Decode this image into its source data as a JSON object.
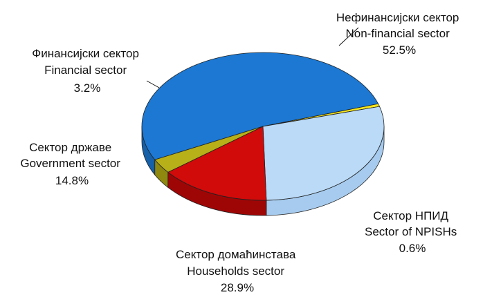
{
  "chart_data": {
    "type": "pie",
    "title": "",
    "slices": [
      {
        "name_sr": "Нефинансијски сектор",
        "name_en": "Non-financial sector",
        "value": 52.5,
        "value_label": "52.5%",
        "color": "#1C78D2",
        "side_color": "#1560A8"
      },
      {
        "name_sr": "Сектор НПИД",
        "name_en": "Sector of NPISHs",
        "value": 0.6,
        "value_label": "0.6%",
        "color": "#F5E61E",
        "side_color": "#C9BC10"
      },
      {
        "name_sr": "Сектор домаћинстава",
        "name_en": "Households sector",
        "value": 28.9,
        "value_label": "28.9%",
        "color": "#BADAF7",
        "side_color": "#A6CBEE"
      },
      {
        "name_sr": "Сектор државе",
        "name_en": "Government sector",
        "value": 14.8,
        "value_label": "14.8%",
        "color": "#D10A0A",
        "side_color": "#9E0606"
      },
      {
        "name_sr": "Финансијски сектор",
        "name_en": "Financial sector",
        "value": 3.2,
        "value_label": "3.2%",
        "color": "#B8B018",
        "side_color": "#8F890F"
      }
    ]
  }
}
